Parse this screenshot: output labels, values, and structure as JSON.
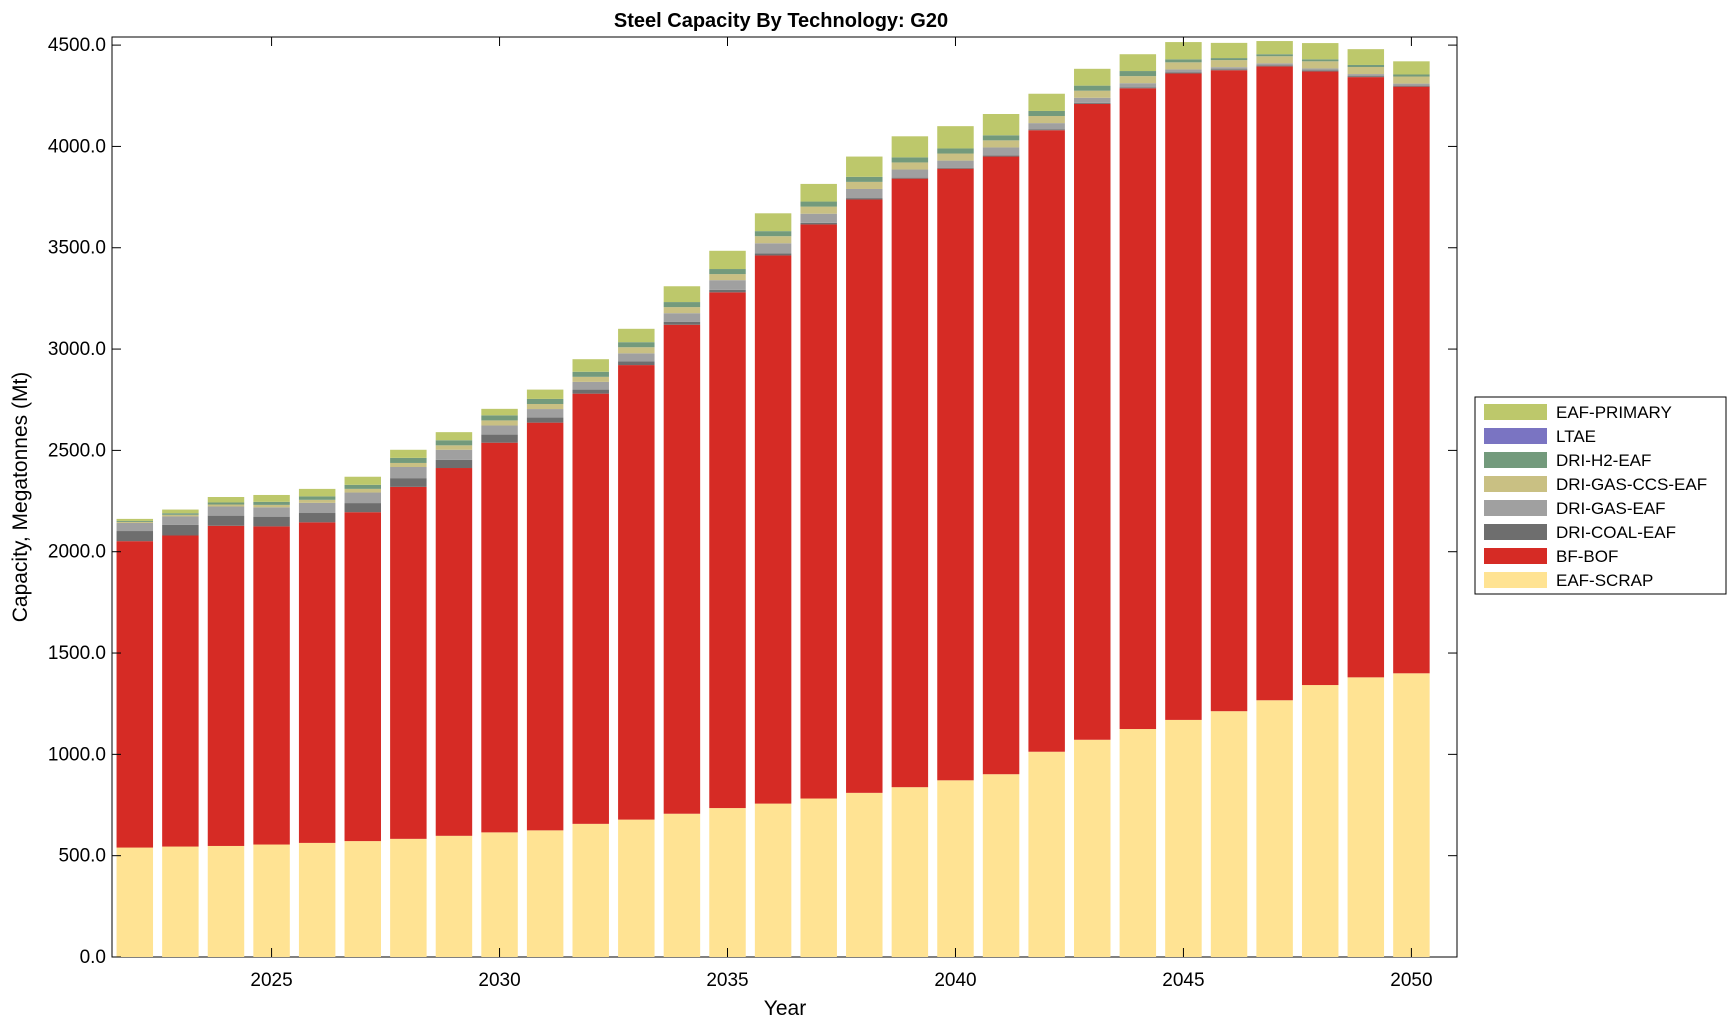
{
  "chart_data": {
    "type": "bar",
    "stacked": true,
    "title": "Steel Capacity By Technology: G20",
    "xlabel": "Year",
    "ylabel": "Capacity, Megatonnes (Mt)",
    "ylim": [
      0,
      4540
    ],
    "xlim": [
      2021.5,
      2051
    ],
    "y_ticks": [
      0,
      500,
      1000,
      1500,
      2000,
      2500,
      3000,
      3500,
      4000,
      4500
    ],
    "y_tick_labels": [
      "0.0",
      "500.0",
      "1000.0",
      "1500.0",
      "2000.0",
      "2500.0",
      "3000.0",
      "3500.0",
      "4000.0",
      "4500.0"
    ],
    "x_ticks": [
      2025,
      2030,
      2035,
      2040,
      2045,
      2050
    ],
    "x_tick_labels": [
      "2025",
      "2030",
      "2035",
      "2040",
      "2045",
      "2050"
    ],
    "legend_position": "right",
    "categories": [
      2022,
      2023,
      2024,
      2025,
      2026,
      2027,
      2028,
      2029,
      2030,
      2031,
      2032,
      2033,
      2034,
      2035,
      2036,
      2037,
      2038,
      2039,
      2040,
      2041,
      2042,
      2043,
      2044,
      2045,
      2046,
      2047,
      2048,
      2049,
      2050
    ],
    "series": [
      {
        "name": "EAF-SCRAP",
        "color": "#FFE393",
        "values": [
          540,
          545,
          548,
          555,
          563,
          572,
          583,
          598,
          615,
          625,
          657,
          678,
          707,
          735,
          757,
          782,
          810,
          838,
          872,
          902,
          1013,
          1072,
          1125,
          1170,
          1213,
          1267,
          1342,
          1380,
          1400
        ]
      },
      {
        "name": "BF-BOF",
        "color": "#D62B25",
        "values": [
          1512,
          1535,
          1580,
          1570,
          1582,
          1623,
          1737,
          1815,
          1923,
          2012,
          2123,
          2243,
          2413,
          2545,
          2705,
          2833,
          2928,
          3003,
          3018,
          3048,
          3067,
          3138,
          3162,
          3190,
          3163,
          3128,
          3028,
          2962,
          2895
        ]
      },
      {
        "name": "DRI-COAL-EAF",
        "color": "#6E6E6E",
        "values": [
          50,
          52,
          50,
          48,
          46,
          45,
          43,
          40,
          40,
          25,
          20,
          18,
          15,
          12,
          10,
          8,
          7,
          5,
          5,
          5,
          5,
          5,
          5,
          5,
          5,
          5,
          5,
          5,
          5
        ]
      },
      {
        "name": "DRI-GAS-EAF",
        "color": "#A0A0A0",
        "values": [
          40,
          42,
          45,
          46,
          50,
          52,
          55,
          50,
          45,
          42,
          38,
          40,
          42,
          48,
          50,
          45,
          45,
          40,
          35,
          40,
          30,
          25,
          20,
          15,
          10,
          10,
          10,
          10,
          10
        ]
      },
      {
        "name": "DRI-GAS-CCS-EAF",
        "color": "#C9C083",
        "values": [
          5,
          8,
          10,
          12,
          15,
          18,
          20,
          22,
          25,
          25,
          25,
          30,
          30,
          30,
          35,
          35,
          35,
          35,
          35,
          35,
          35,
          35,
          35,
          35,
          35,
          35,
          35,
          35,
          35
        ]
      },
      {
        "name": "DRI-H2-EAF",
        "color": "#739A7C",
        "values": [
          5,
          8,
          10,
          15,
          17,
          20,
          25,
          25,
          25,
          25,
          25,
          25,
          25,
          25,
          25,
          25,
          25,
          25,
          25,
          25,
          25,
          25,
          25,
          15,
          10,
          10,
          10,
          10,
          10
        ]
      },
      {
        "name": "LTAE",
        "color": "#7A74C2",
        "values": [
          0,
          0,
          0,
          0,
          0,
          0,
          0,
          0,
          0,
          0,
          0,
          0,
          0,
          0,
          0,
          0,
          0,
          0,
          0,
          0,
          0,
          0,
          0,
          0,
          0,
          0,
          0,
          0,
          0
        ]
      },
      {
        "name": "EAF-PRIMARY",
        "color": "#BDC86B",
        "values": [
          10,
          18,
          27,
          34,
          37,
          40,
          40,
          40,
          32,
          46,
          62,
          66,
          78,
          90,
          88,
          87,
          100,
          104,
          110,
          105,
          85,
          83,
          83,
          85,
          75,
          65,
          80,
          78,
          65
        ]
      }
    ],
    "legend_order": [
      "EAF-PRIMARY",
      "LTAE",
      "DRI-H2-EAF",
      "DRI-GAS-CCS-EAF",
      "DRI-GAS-EAF",
      "DRI-COAL-EAF",
      "BF-BOF",
      "EAF-SCRAP"
    ]
  }
}
